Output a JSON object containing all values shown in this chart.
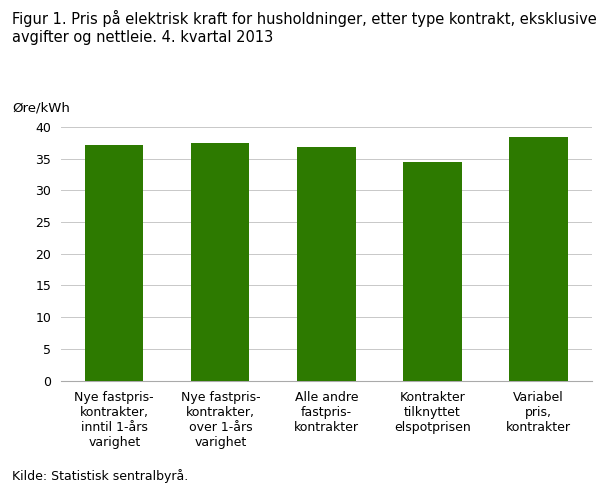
{
  "title": "Figur 1. Pris på elektrisk kraft for husholdninger, etter type kontrakt, eksklusive\navgifter og nettleie. 4. kvartal 2013",
  "ylabel_text": "Øre/kWh",
  "categories": [
    "Nye fastpris-\nkontrakter,\ninntil 1-års\nvarighet",
    "Nye fastpris-\nkontrakter,\nover 1-års\nvarighet",
    "Alle andre\nfastpris-\nkontrakter",
    "Kontrakter\ntilknyttet\nelspotprisen",
    "Variabel\npris,\nkontrakter"
  ],
  "values": [
    37.2,
    37.5,
    36.8,
    34.5,
    38.4
  ],
  "bar_color": "#2d7a00",
  "ylim": [
    0,
    40
  ],
  "yticks": [
    0,
    5,
    10,
    15,
    20,
    25,
    30,
    35,
    40
  ],
  "source_text": "Kilde: Statistisk sentralbyrå.",
  "title_fontsize": 10.5,
  "label_fontsize": 9.5,
  "tick_fontsize": 9,
  "source_fontsize": 9,
  "background_color": "#ffffff",
  "grid_color": "#c8c8c8"
}
